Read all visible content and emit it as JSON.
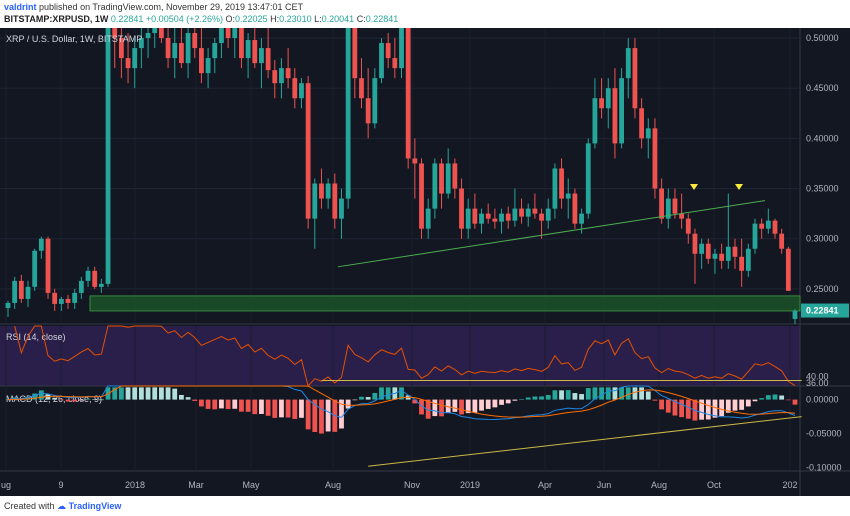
{
  "header": {
    "user": "valdrint",
    "published_text": "published on TradingView.com, November 29, 2019 13:47:01 CET",
    "symbol": "BITSTAMP:XRPUSD, 1W",
    "last": "0.22841",
    "change": "+0.00504 (+2.26%)",
    "o_label": "O:",
    "o_val": "0.22025",
    "h_label": "H:",
    "h_val": "0.23010",
    "l_label": "L:",
    "l_val": "0.20041",
    "c_label": "C:",
    "c_val": "0.22841"
  },
  "footer": {
    "created_with": "Created with",
    "brand": "TradingView"
  },
  "legends": {
    "main": "XRP / U.S. Dollar, 1W, BITSTAMP",
    "rsi": "RSI (14, close)",
    "macd": "MACD (12, 26, close, 9)"
  },
  "colors": {
    "up": "#26a69a",
    "down": "#ef5350",
    "bg": "#131722",
    "rsi_bg": "#2a1f4a",
    "zone": "#1e5b2a",
    "trend": "#4caf50",
    "rsi_line": "#e65100",
    "macd_line": "#1e88e5",
    "signal_line": "#ff6d00",
    "yellow_line": "#cdb945"
  },
  "chart_data": [
    {
      "type": "candlestick",
      "title": "XRP / U.S. Dollar, 1W, BITSTAMP",
      "ylim": [
        0.215,
        0.51
      ],
      "y_ticks": [
        "0.50000",
        "0.45000",
        "0.40000",
        "0.35000",
        "0.30000",
        "0.25000"
      ],
      "x_ticks": [
        "ug",
        "9",
        "2018",
        "Mar",
        "May",
        "Aug",
        "Nov",
        "2019",
        "Apr",
        "Jun",
        "Aug",
        "Oct",
        "202"
      ],
      "last_price_label": "0.22841",
      "support_zone": [
        0.228,
        0.243
      ],
      "trendline": {
        "from": [
          "Aug 2018",
          0.272
        ],
        "to": [
          "Nov 2019",
          0.338
        ]
      },
      "markers": [
        "Sep 2019",
        "Nov 2019"
      ],
      "candles": [
        {
          "o": 0.231,
          "h": 0.238,
          "l": 0.222,
          "c": 0.236
        },
        {
          "o": 0.236,
          "h": 0.262,
          "l": 0.23,
          "c": 0.258
        },
        {
          "o": 0.258,
          "h": 0.264,
          "l": 0.236,
          "c": 0.24
        },
        {
          "o": 0.24,
          "h": 0.258,
          "l": 0.232,
          "c": 0.252
        },
        {
          "o": 0.252,
          "h": 0.29,
          "l": 0.248,
          "c": 0.288
        },
        {
          "o": 0.288,
          "h": 0.302,
          "l": 0.28,
          "c": 0.3
        },
        {
          "o": 0.3,
          "h": 0.302,
          "l": 0.24,
          "c": 0.246
        },
        {
          "o": 0.246,
          "h": 0.25,
          "l": 0.228,
          "c": 0.235
        },
        {
          "o": 0.235,
          "h": 0.242,
          "l": 0.228,
          "c": 0.24
        },
        {
          "o": 0.24,
          "h": 0.244,
          "l": 0.23,
          "c": 0.236
        },
        {
          "o": 0.236,
          "h": 0.25,
          "l": 0.23,
          "c": 0.246
        },
        {
          "o": 0.246,
          "h": 0.262,
          "l": 0.24,
          "c": 0.258
        },
        {
          "o": 0.258,
          "h": 0.272,
          "l": 0.252,
          "c": 0.268
        },
        {
          "o": 0.268,
          "h": 0.272,
          "l": 0.25,
          "c": 0.252
        },
        {
          "o": 0.252,
          "h": 0.26,
          "l": 0.246,
          "c": 0.255
        },
        {
          "o": 0.255,
          "h": 0.52,
          "l": 0.252,
          "c": 0.52
        },
        {
          "o": 0.52,
          "h": 0.53,
          "l": 0.47,
          "c": 0.5
        },
        {
          "o": 0.5,
          "h": 0.52,
          "l": 0.46,
          "c": 0.48
        },
        {
          "o": 0.48,
          "h": 0.505,
          "l": 0.455,
          "c": 0.47
        },
        {
          "o": 0.47,
          "h": 0.5,
          "l": 0.45,
          "c": 0.49
        },
        {
          "o": 0.49,
          "h": 0.51,
          "l": 0.47,
          "c": 0.5
        },
        {
          "o": 0.5,
          "h": 0.52,
          "l": 0.48,
          "c": 0.505
        },
        {
          "o": 0.505,
          "h": 0.52,
          "l": 0.49,
          "c": 0.51
        },
        {
          "o": 0.51,
          "h": 0.525,
          "l": 0.495,
          "c": 0.5
        },
        {
          "o": 0.5,
          "h": 0.52,
          "l": 0.47,
          "c": 0.48
        },
        {
          "o": 0.48,
          "h": 0.51,
          "l": 0.46,
          "c": 0.495
        },
        {
          "o": 0.495,
          "h": 0.515,
          "l": 0.47,
          "c": 0.475
        },
        {
          "o": 0.475,
          "h": 0.52,
          "l": 0.46,
          "c": 0.505
        },
        {
          "o": 0.505,
          "h": 0.52,
          "l": 0.48,
          "c": 0.49
        },
        {
          "o": 0.49,
          "h": 0.51,
          "l": 0.455,
          "c": 0.465
        },
        {
          "o": 0.465,
          "h": 0.49,
          "l": 0.45,
          "c": 0.48
        },
        {
          "o": 0.48,
          "h": 0.5,
          "l": 0.465,
          "c": 0.495
        },
        {
          "o": 0.495,
          "h": 0.52,
          "l": 0.48,
          "c": 0.51
        },
        {
          "o": 0.51,
          "h": 0.525,
          "l": 0.49,
          "c": 0.5
        },
        {
          "o": 0.5,
          "h": 0.52,
          "l": 0.48,
          "c": 0.51
        },
        {
          "o": 0.51,
          "h": 0.52,
          "l": 0.47,
          "c": 0.48
        },
        {
          "o": 0.48,
          "h": 0.505,
          "l": 0.46,
          "c": 0.498
        },
        {
          "o": 0.498,
          "h": 0.52,
          "l": 0.47,
          "c": 0.475
        },
        {
          "o": 0.475,
          "h": 0.5,
          "l": 0.45,
          "c": 0.49
        },
        {
          "o": 0.49,
          "h": 0.51,
          "l": 0.46,
          "c": 0.468
        },
        {
          "o": 0.468,
          "h": 0.478,
          "l": 0.44,
          "c": 0.455
        },
        {
          "o": 0.455,
          "h": 0.48,
          "l": 0.44,
          "c": 0.47
        },
        {
          "o": 0.47,
          "h": 0.49,
          "l": 0.45,
          "c": 0.46
        },
        {
          "o": 0.46,
          "h": 0.47,
          "l": 0.43,
          "c": 0.44
        },
        {
          "o": 0.44,
          "h": 0.46,
          "l": 0.43,
          "c": 0.455
        },
        {
          "o": 0.455,
          "h": 0.462,
          "l": 0.31,
          "c": 0.32
        },
        {
          "o": 0.32,
          "h": 0.36,
          "l": 0.29,
          "c": 0.355
        },
        {
          "o": 0.355,
          "h": 0.37,
          "l": 0.33,
          "c": 0.34
        },
        {
          "o": 0.34,
          "h": 0.36,
          "l": 0.33,
          "c": 0.355
        },
        {
          "o": 0.355,
          "h": 0.365,
          "l": 0.31,
          "c": 0.32
        },
        {
          "o": 0.32,
          "h": 0.35,
          "l": 0.3,
          "c": 0.34
        },
        {
          "o": 0.34,
          "h": 0.52,
          "l": 0.33,
          "c": 0.51
        },
        {
          "o": 0.51,
          "h": 0.53,
          "l": 0.44,
          "c": 0.46
        },
        {
          "o": 0.46,
          "h": 0.48,
          "l": 0.43,
          "c": 0.44
        },
        {
          "o": 0.44,
          "h": 0.47,
          "l": 0.4,
          "c": 0.415
        },
        {
          "o": 0.415,
          "h": 0.47,
          "l": 0.41,
          "c": 0.46
        },
        {
          "o": 0.46,
          "h": 0.5,
          "l": 0.455,
          "c": 0.495
        },
        {
          "o": 0.495,
          "h": 0.505,
          "l": 0.47,
          "c": 0.48
        },
        {
          "o": 0.48,
          "h": 0.5,
          "l": 0.46,
          "c": 0.47
        },
        {
          "o": 0.47,
          "h": 0.52,
          "l": 0.46,
          "c": 0.51
        },
        {
          "o": 0.51,
          "h": 0.52,
          "l": 0.37,
          "c": 0.38
        },
        {
          "o": 0.38,
          "h": 0.4,
          "l": 0.34,
          "c": 0.375
        },
        {
          "o": 0.375,
          "h": 0.38,
          "l": 0.3,
          "c": 0.31
        },
        {
          "o": 0.31,
          "h": 0.34,
          "l": 0.3,
          "c": 0.33
        },
        {
          "o": 0.33,
          "h": 0.38,
          "l": 0.32,
          "c": 0.375
        },
        {
          "o": 0.375,
          "h": 0.38,
          "l": 0.33,
          "c": 0.345
        },
        {
          "o": 0.345,
          "h": 0.39,
          "l": 0.34,
          "c": 0.375
        },
        {
          "o": 0.375,
          "h": 0.38,
          "l": 0.34,
          "c": 0.35
        },
        {
          "o": 0.35,
          "h": 0.36,
          "l": 0.3,
          "c": 0.31
        },
        {
          "o": 0.31,
          "h": 0.34,
          "l": 0.3,
          "c": 0.33
        },
        {
          "o": 0.33,
          "h": 0.345,
          "l": 0.31,
          "c": 0.315
        },
        {
          "o": 0.315,
          "h": 0.33,
          "l": 0.305,
          "c": 0.325
        },
        {
          "o": 0.325,
          "h": 0.335,
          "l": 0.315,
          "c": 0.32
        },
        {
          "o": 0.32,
          "h": 0.33,
          "l": 0.31,
          "c": 0.317
        },
        {
          "o": 0.317,
          "h": 0.33,
          "l": 0.305,
          "c": 0.325
        },
        {
          "o": 0.325,
          "h": 0.332,
          "l": 0.31,
          "c": 0.318
        },
        {
          "o": 0.318,
          "h": 0.35,
          "l": 0.312,
          "c": 0.33
        },
        {
          "o": 0.33,
          "h": 0.34,
          "l": 0.315,
          "c": 0.322
        },
        {
          "o": 0.322,
          "h": 0.335,
          "l": 0.312,
          "c": 0.33
        },
        {
          "o": 0.33,
          "h": 0.345,
          "l": 0.32,
          "c": 0.325
        },
        {
          "o": 0.325,
          "h": 0.33,
          "l": 0.3,
          "c": 0.318
        },
        {
          "o": 0.318,
          "h": 0.34,
          "l": 0.31,
          "c": 0.33
        },
        {
          "o": 0.33,
          "h": 0.375,
          "l": 0.32,
          "c": 0.37
        },
        {
          "o": 0.37,
          "h": 0.38,
          "l": 0.33,
          "c": 0.34
        },
        {
          "o": 0.34,
          "h": 0.36,
          "l": 0.32,
          "c": 0.345
        },
        {
          "o": 0.345,
          "h": 0.35,
          "l": 0.31,
          "c": 0.315
        },
        {
          "o": 0.315,
          "h": 0.33,
          "l": 0.305,
          "c": 0.325
        },
        {
          "o": 0.325,
          "h": 0.4,
          "l": 0.32,
          "c": 0.395
        },
        {
          "o": 0.395,
          "h": 0.46,
          "l": 0.39,
          "c": 0.44
        },
        {
          "o": 0.44,
          "h": 0.46,
          "l": 0.42,
          "c": 0.43
        },
        {
          "o": 0.43,
          "h": 0.46,
          "l": 0.41,
          "c": 0.45
        },
        {
          "o": 0.45,
          "h": 0.47,
          "l": 0.38,
          "c": 0.395
        },
        {
          "o": 0.395,
          "h": 0.47,
          "l": 0.39,
          "c": 0.46
        },
        {
          "o": 0.46,
          "h": 0.5,
          "l": 0.44,
          "c": 0.49
        },
        {
          "o": 0.49,
          "h": 0.5,
          "l": 0.42,
          "c": 0.43
        },
        {
          "o": 0.43,
          "h": 0.44,
          "l": 0.39,
          "c": 0.4
        },
        {
          "o": 0.4,
          "h": 0.42,
          "l": 0.38,
          "c": 0.41
        },
        {
          "o": 0.41,
          "h": 0.42,
          "l": 0.34,
          "c": 0.35
        },
        {
          "o": 0.35,
          "h": 0.36,
          "l": 0.315,
          "c": 0.32
        },
        {
          "o": 0.32,
          "h": 0.35,
          "l": 0.31,
          "c": 0.34
        },
        {
          "o": 0.34,
          "h": 0.35,
          "l": 0.32,
          "c": 0.325
        },
        {
          "o": 0.325,
          "h": 0.345,
          "l": 0.31,
          "c": 0.32
        },
        {
          "o": 0.32,
          "h": 0.325,
          "l": 0.295,
          "c": 0.305
        },
        {
          "o": 0.305,
          "h": 0.31,
          "l": 0.255,
          "c": 0.285
        },
        {
          "o": 0.285,
          "h": 0.3,
          "l": 0.27,
          "c": 0.295
        },
        {
          "o": 0.295,
          "h": 0.3,
          "l": 0.275,
          "c": 0.28
        },
        {
          "o": 0.28,
          "h": 0.29,
          "l": 0.265,
          "c": 0.285
        },
        {
          "o": 0.285,
          "h": 0.295,
          "l": 0.27,
          "c": 0.278
        },
        {
          "o": 0.278,
          "h": 0.345,
          "l": 0.27,
          "c": 0.292
        },
        {
          "o": 0.292,
          "h": 0.3,
          "l": 0.27,
          "c": 0.282
        },
        {
          "o": 0.282,
          "h": 0.3,
          "l": 0.252,
          "c": 0.268
        },
        {
          "o": 0.268,
          "h": 0.295,
          "l": 0.262,
          "c": 0.29
        },
        {
          "o": 0.29,
          "h": 0.32,
          "l": 0.285,
          "c": 0.315
        },
        {
          "o": 0.315,
          "h": 0.32,
          "l": 0.3,
          "c": 0.31
        },
        {
          "o": 0.31,
          "h": 0.33,
          "l": 0.305,
          "c": 0.318
        },
        {
          "o": 0.318,
          "h": 0.32,
          "l": 0.3,
          "c": 0.305
        },
        {
          "o": 0.305,
          "h": 0.31,
          "l": 0.285,
          "c": 0.29
        },
        {
          "o": 0.29,
          "h": 0.292,
          "l": 0.248,
          "c": 0.248
        },
        {
          "o": 0.22,
          "h": 0.23,
          "l": 0.2,
          "c": 0.228
        }
      ]
    },
    {
      "type": "line",
      "title": "RSI (14, close)",
      "ylim": [
        34,
        72
      ],
      "y_ticks": [
        "40.00",
        "36.00"
      ],
      "support_line": {
        "from_index": 47,
        "to_index": 119,
        "values": [
          37.5,
          37.5
        ]
      }
    },
    {
      "type": "bar",
      "title": "MACD (12, 26, close, 9)",
      "ylim": [
        -0.105,
        0.02
      ],
      "y_ticks": [
        "0.00000",
        "-0.05000",
        "-0.10000"
      ],
      "support_line": {
        "from_index": 54,
        "to_index": 119,
        "values": [
          -0.098,
          -0.025
        ]
      }
    }
  ]
}
